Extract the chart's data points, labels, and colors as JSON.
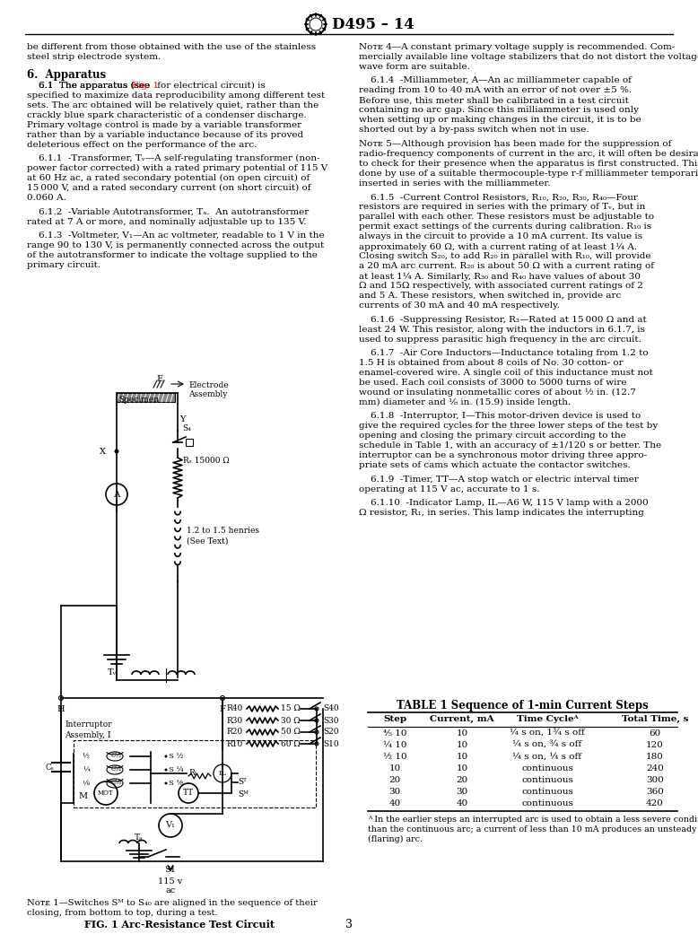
{
  "title": "D495 – 14",
  "page_number": "3",
  "bg": "#ffffff",
  "table_headers": [
    "Step",
    "Current, mA",
    "Time Cycleᴬ",
    "Total Time, s"
  ],
  "table_rows": [
    [
      "⅘ 10",
      "10",
      "¼ s on, 1¾ s off",
      "60"
    ],
    [
      "¼ 10",
      "10",
      "¼ s on, ¾ s off",
      "120"
    ],
    [
      "½ 10",
      "10",
      "¼ s on, ¼ s off",
      "180"
    ],
    [
      "10",
      "10",
      "continuous",
      "240"
    ],
    [
      "20",
      "20",
      "continuous",
      "300"
    ],
    [
      "30",
      "30",
      "continuous",
      "360"
    ],
    [
      "40",
      "40",
      "continuous",
      "420"
    ]
  ]
}
